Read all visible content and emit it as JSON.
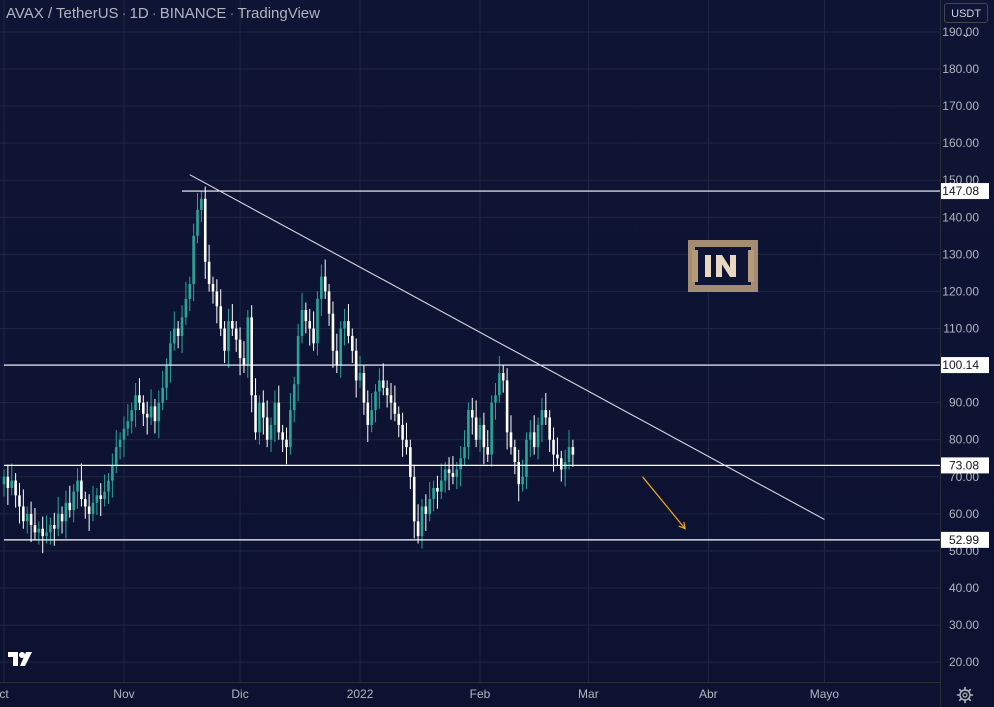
{
  "title": {
    "symbol": "AVAX / TetherUS",
    "interval": "1D",
    "exchange": "BINANCE",
    "platform": "TradingView"
  },
  "toolbar": {
    "currency_label": "USDT"
  },
  "icons": {
    "tv_logo": "tradingview-logo-icon",
    "settings": "gear-icon",
    "watermark": "beincrypto-logo-icon"
  },
  "colors": {
    "background": "#0e1433",
    "grid": "#1f2744",
    "candle_up": "#26a69a",
    "candle_down": "#ffffff",
    "level_lines": "#ffffff",
    "trendline": "#d8d8e0",
    "projection_arrow": "#f5a623",
    "axis_text": "#b2b5be"
  },
  "chart_data": {
    "type": "candlestick",
    "title": "AVAX / TetherUS · 1D · BINANCE · TradingView",
    "xlabel": "",
    "ylabel": "",
    "ylim": [
      16,
      197
    ],
    "yticks": [
      "20.00",
      "30.00",
      "40.00",
      "50.00",
      "60.00",
      "70.00",
      "80.00",
      "90.00",
      "100.00",
      "110.00",
      "120.00",
      "130.00",
      "140.00",
      "150.00",
      "160.00",
      "170.00",
      "180.00",
      "190.00"
    ],
    "xticks": [
      "ct",
      "Nov",
      "Dic",
      "2022",
      "Feb",
      "Mar",
      "Abr",
      "Mayo"
    ],
    "x_axis": {
      "start": "2021-10-01",
      "tick_dates": [
        "2021-10-01",
        "2021-11-01",
        "2021-12-01",
        "2022-01-01",
        "2022-02-01",
        "2022-03-01",
        "2022-04-01",
        "2022-05-01"
      ]
    },
    "grid": true,
    "levels": [
      {
        "label": "147.08",
        "value": 147.08,
        "from": "2021-11-16"
      },
      {
        "label": "100.14",
        "value": 100.14,
        "from": "2021-10-01"
      },
      {
        "label": "73.08",
        "value": 73.08,
        "from": "2021-10-01"
      },
      {
        "label": "52.99",
        "value": 52.99,
        "from": "2021-10-01"
      }
    ],
    "trendline": {
      "from": [
        "2021-11-18",
        151.5
      ],
      "to": [
        "2022-05-01",
        58.5
      ]
    },
    "projection_arrow": {
      "from": [
        "2022-03-15",
        70
      ],
      "to": [
        "2022-03-26",
        56
      ]
    },
    "closes": [
      70,
      67,
      69,
      65,
      62,
      58,
      60,
      57,
      55,
      56,
      54,
      55,
      57,
      56,
      60,
      58,
      63,
      61,
      66,
      69,
      64,
      62,
      60,
      63,
      65,
      64,
      66,
      69,
      73,
      78,
      80,
      83,
      85,
      88,
      92,
      90,
      87,
      86,
      89,
      85,
      90,
      94,
      100,
      106,
      110,
      108,
      113,
      118,
      122,
      135,
      142,
      145,
      128,
      122,
      120,
      116,
      110,
      104,
      112,
      110,
      107,
      102,
      100,
      113,
      92,
      82,
      90,
      86,
      80,
      84,
      90,
      82,
      80,
      78,
      88,
      95,
      108,
      115,
      112,
      110,
      106,
      118,
      124,
      120,
      114,
      104,
      100,
      110,
      112,
      108,
      104,
      96,
      98,
      90,
      84,
      88,
      93,
      96,
      94,
      92,
      90,
      87,
      84,
      80,
      78,
      70,
      58,
      54,
      62,
      60,
      64,
      67,
      66,
      69,
      72,
      71,
      70,
      72,
      75,
      78,
      88,
      86,
      80,
      84,
      78,
      76,
      90,
      92,
      98,
      96,
      82,
      78,
      74,
      68,
      70,
      80,
      82,
      78,
      84,
      88,
      86,
      80,
      76,
      75,
      72,
      74,
      78,
      76
    ]
  }
}
